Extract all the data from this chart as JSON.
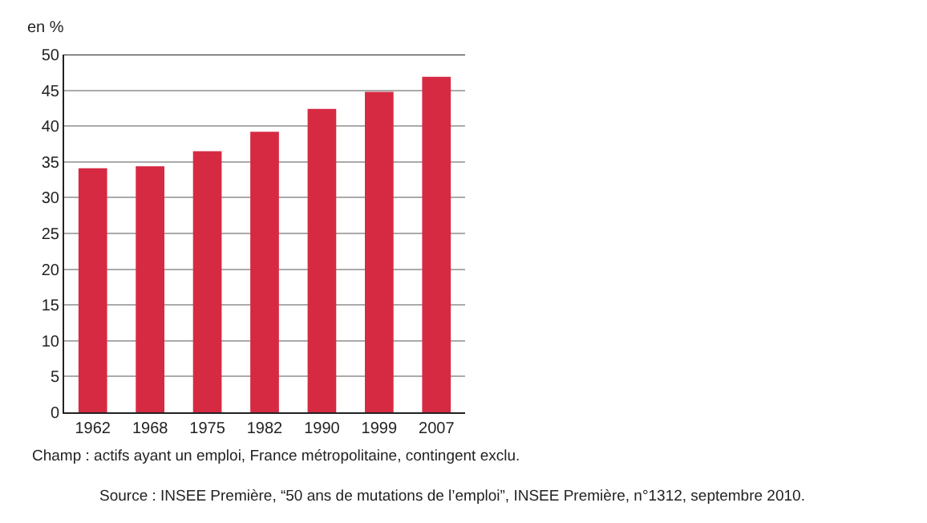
{
  "chart_data": {
    "type": "bar",
    "ylabel": "en %",
    "categories": [
      "1962",
      "1968",
      "1975",
      "1982",
      "1990",
      "1999",
      "2007"
    ],
    "values": [
      34.1,
      34.4,
      36.5,
      39.2,
      42.4,
      44.8,
      46.9
    ],
    "color": "#d62a43",
    "ylim": [
      0,
      50
    ],
    "yticks": [
      0,
      5,
      10,
      15,
      20,
      25,
      30,
      35,
      40,
      45,
      50
    ],
    "grid": "y",
    "annotations": [
      "Champ : actifs ayant un emploi, France métropolitaine, contingent exclu.",
      "Source : INSEE Première, “50 ans de mutations de l’emploi”, INSEE Première, n°1312, septembre 2010."
    ]
  }
}
